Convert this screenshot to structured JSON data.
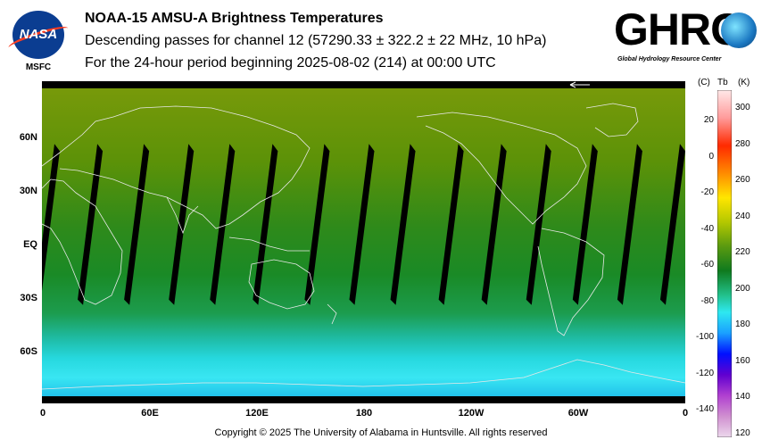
{
  "header": {
    "title": "NOAA-15 AMSU-A Brightness Temperatures",
    "subtitle_line1": "Descending passes for channel 12 (57290.33 ± 322.2 ± 22 MHz, 10 hPa)",
    "subtitle_line2": "For the 24-hour period beginning 2025-08-02 (214) at 00:00 UTC"
  },
  "logos": {
    "nasa": "NASA",
    "msfc": "MSFC",
    "ghrc": "GHRC",
    "ghrc_subtitle": "Global Hydrology Resource Center"
  },
  "chart_data": {
    "type": "heatmap",
    "title": "NOAA-15 AMSU-A Brightness Temperatures",
    "x_ticks": [
      "0",
      "60E",
      "120E",
      "180",
      "120W",
      "60W",
      "0"
    ],
    "x_tick_lon": [
      0,
      60,
      120,
      180,
      240,
      300,
      360
    ],
    "y_ticks": [
      "60N",
      "30N",
      "EQ",
      "30S",
      "60S"
    ],
    "y_tick_lat": [
      60,
      30,
      0,
      -30,
      -60
    ],
    "xlim": [
      0,
      360
    ],
    "ylim": [
      -90,
      90
    ],
    "colorbar": {
      "header_c": "(C)",
      "header_tb": "Tb",
      "header_k": "(K)",
      "celsius_ticks": [
        "20",
        "0",
        "-20",
        "-40",
        "-60",
        "-80",
        "-100",
        "-120",
        "-140"
      ],
      "celsius_values": [
        20,
        0,
        -20,
        -40,
        -60,
        -80,
        -100,
        -120,
        -140
      ],
      "kelvin_ticks": [
        "300",
        "280",
        "260",
        "240",
        "220",
        "200",
        "180",
        "160",
        "140",
        "120"
      ],
      "kelvin_values": [
        300,
        280,
        260,
        240,
        220,
        200,
        180,
        160,
        140,
        120
      ],
      "range_k": [
        118,
        310
      ]
    },
    "field_summary": {
      "northern_hemisphere_tb_k": 225,
      "tropics_tb_k": 215,
      "southern_midlat_tb_k": 205,
      "antarctic_tb_k": 195
    },
    "orbit_gaps_start_lon": [
      0,
      24,
      50,
      75,
      98,
      122,
      151,
      176,
      199,
      226,
      250,
      275,
      301,
      326,
      350
    ]
  },
  "footer": {
    "copyright": "Copyright © 2025 The University of Alabama in Huntsville.  All rights reserved"
  },
  "colors": {
    "missing": "#000000",
    "coastline": "#e8e8e8"
  }
}
